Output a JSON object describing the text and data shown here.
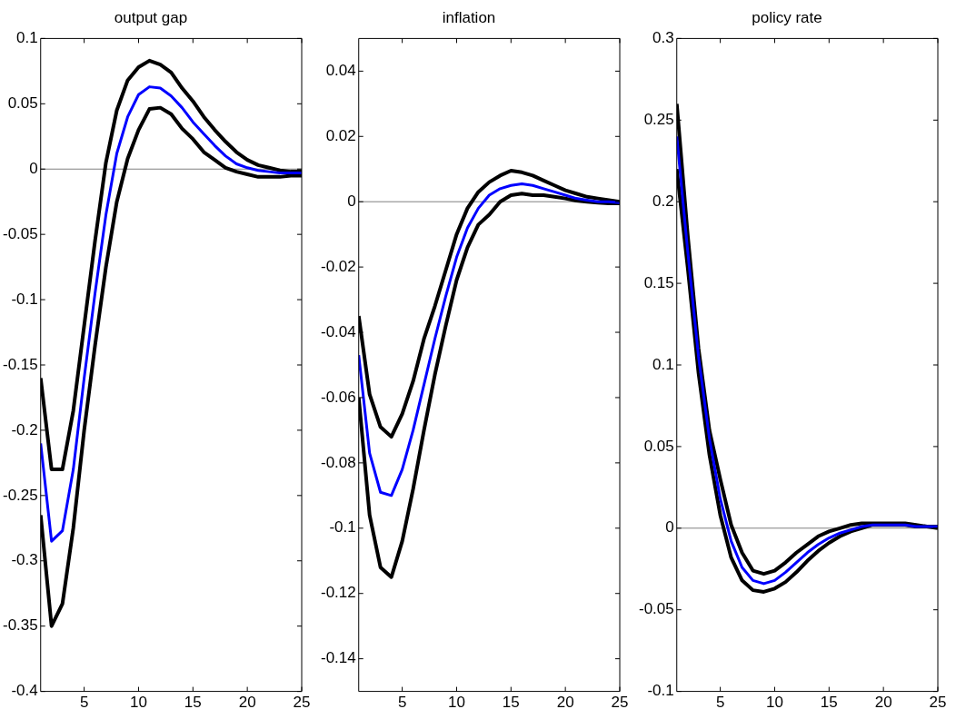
{
  "chart_data": [
    {
      "type": "line",
      "title": "output gap",
      "x": [
        1,
        2,
        3,
        4,
        5,
        6,
        7,
        8,
        9,
        10,
        11,
        12,
        13,
        14,
        15,
        16,
        17,
        18,
        19,
        20,
        21,
        22,
        23,
        24,
        25
      ],
      "xlim": [
        1,
        25
      ],
      "xticks": [
        5,
        10,
        15,
        20,
        25
      ],
      "ylim": [
        -0.4,
        0.1
      ],
      "yticks": [
        -0.4,
        -0.35,
        -0.3,
        -0.25,
        -0.2,
        -0.15,
        -0.1,
        -0.05,
        0,
        0.05,
        0.1
      ],
      "marker": "none",
      "ref_lines": [
        {
          "axis": "y",
          "value": 0,
          "color": "#808080"
        }
      ],
      "series": [
        {
          "color": "#000000",
          "values": [
            -0.16,
            -0.23,
            -0.23,
            -0.185,
            -0.12,
            -0.055,
            0.005,
            0.045,
            0.068,
            0.078,
            0.083,
            0.08,
            0.074,
            0.062,
            0.052,
            0.04,
            0.03,
            0.021,
            0.013,
            0.007,
            0.003,
            0.001,
            -0.001,
            -0.002,
            -0.002
          ]
        },
        {
          "color": "#0000ff",
          "values": [
            -0.21,
            -0.285,
            -0.277,
            -0.23,
            -0.16,
            -0.095,
            -0.035,
            0.012,
            0.04,
            0.057,
            0.063,
            0.062,
            0.056,
            0.047,
            0.036,
            0.027,
            0.018,
            0.01,
            0.004,
            0.001,
            -0.001,
            -0.002,
            -0.003,
            -0.003,
            -0.003
          ]
        },
        {
          "color": "#000000",
          "values": [
            -0.265,
            -0.35,
            -0.333,
            -0.275,
            -0.2,
            -0.135,
            -0.075,
            -0.025,
            0.008,
            0.03,
            0.046,
            0.047,
            0.042,
            0.031,
            0.023,
            0.013,
            0.007,
            0.001,
            -0.002,
            -0.004,
            -0.006,
            -0.006,
            -0.006,
            -0.005,
            -0.005
          ]
        }
      ]
    },
    {
      "type": "line",
      "title": "inflation",
      "x": [
        1,
        2,
        3,
        4,
        5,
        6,
        7,
        8,
        9,
        10,
        11,
        12,
        13,
        14,
        15,
        16,
        17,
        18,
        19,
        20,
        21,
        22,
        23,
        24,
        25
      ],
      "xlim": [
        1,
        25
      ],
      "xticks": [
        5,
        10,
        15,
        20,
        25
      ],
      "ylim": [
        -0.15,
        0.05
      ],
      "yticks": [
        -0.14,
        -0.12,
        -0.1,
        -0.08,
        -0.06,
        -0.04,
        -0.02,
        0,
        0.02,
        0.04
      ],
      "marker": "none",
      "ref_lines": [
        {
          "axis": "y",
          "value": 0,
          "color": "#808080"
        }
      ],
      "series": [
        {
          "color": "#000000",
          "values": [
            -0.035,
            -0.059,
            -0.069,
            -0.072,
            -0.065,
            -0.055,
            -0.042,
            -0.032,
            -0.021,
            -0.01,
            -0.002,
            0.003,
            0.006,
            0.008,
            0.0095,
            0.009,
            0.008,
            0.0065,
            0.005,
            0.0035,
            0.0025,
            0.0015,
            0.001,
            0.0005,
            0
          ]
        },
        {
          "color": "#0000ff",
          "values": [
            -0.047,
            -0.077,
            -0.089,
            -0.09,
            -0.082,
            -0.07,
            -0.056,
            -0.042,
            -0.029,
            -0.017,
            -0.008,
            -0.002,
            0.002,
            0.004,
            0.005,
            0.0055,
            0.005,
            0.004,
            0.003,
            0.002,
            0.001,
            0.0005,
            0,
            0,
            -0.0003
          ]
        },
        {
          "color": "#000000",
          "values": [
            -0.06,
            -0.096,
            -0.112,
            -0.115,
            -0.104,
            -0.088,
            -0.07,
            -0.053,
            -0.038,
            -0.024,
            -0.014,
            -0.007,
            -0.004,
            0,
            0.002,
            0.0025,
            0.002,
            0.002,
            0.0015,
            0.001,
            0.0003,
            0,
            -0.0003,
            -0.0005,
            -0.0005
          ]
        }
      ]
    },
    {
      "type": "line",
      "title": "policy rate",
      "x": [
        1,
        2,
        3,
        4,
        5,
        6,
        7,
        8,
        9,
        10,
        11,
        12,
        13,
        14,
        15,
        16,
        17,
        18,
        19,
        20,
        21,
        22,
        23,
        24,
        25
      ],
      "xlim": [
        1,
        25
      ],
      "xticks": [
        5,
        10,
        15,
        20,
        25
      ],
      "ylim": [
        -0.1,
        0.3
      ],
      "yticks": [
        -0.1,
        -0.05,
        0,
        0.05,
        0.1,
        0.15,
        0.2,
        0.25,
        0.3
      ],
      "marker": "none",
      "ref_lines": [
        {
          "axis": "y",
          "value": 0,
          "color": "#808080"
        }
      ],
      "series": [
        {
          "color": "#000000",
          "values": [
            0.26,
            0.18,
            0.11,
            0.06,
            0.03,
            0.002,
            -0.015,
            -0.026,
            -0.028,
            -0.026,
            -0.021,
            -0.015,
            -0.01,
            -0.005,
            -0.002,
            0,
            0.002,
            0.003,
            0.003,
            0.003,
            0.003,
            0.003,
            0.002,
            0.001,
            0.001
          ]
        },
        {
          "color": "#0000ff",
          "values": [
            0.24,
            0.17,
            0.105,
            0.055,
            0.018,
            -0.008,
            -0.024,
            -0.032,
            -0.034,
            -0.032,
            -0.027,
            -0.021,
            -0.015,
            -0.01,
            -0.006,
            -0.003,
            -0.001,
            0.001,
            0.002,
            0.002,
            0.002,
            0.002,
            0.001,
            0.001,
            0.001
          ]
        },
        {
          "color": "#000000",
          "values": [
            0.22,
            0.16,
            0.095,
            0.045,
            0.008,
            -0.018,
            -0.032,
            -0.038,
            -0.039,
            -0.037,
            -0.033,
            -0.027,
            -0.02,
            -0.014,
            -0.009,
            -0.005,
            -0.002,
            0,
            0.002,
            0.002,
            0.002,
            0.002,
            0.001,
            0.001,
            0
          ]
        }
      ]
    }
  ]
}
